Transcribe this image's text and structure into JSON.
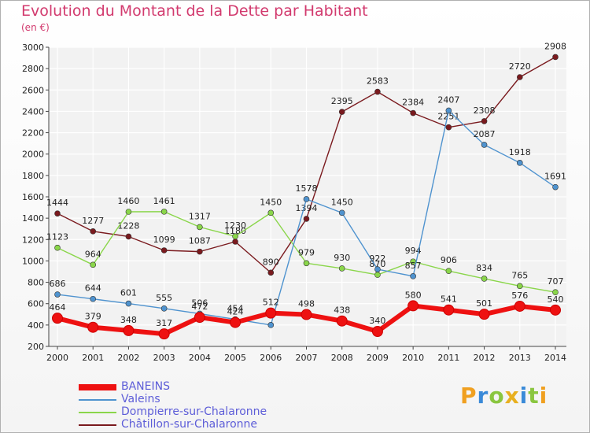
{
  "chart_data": {
    "type": "line",
    "title": "Evolution du Montant de la Dette par Habitant",
    "subtitle": "(en €)",
    "xlabel": "",
    "ylabel": "",
    "x": [
      "2000",
      "2001",
      "2002",
      "2003",
      "2004",
      "2005",
      "2006",
      "2007",
      "2008",
      "2009",
      "2010",
      "2011",
      "2012",
      "2013",
      "2014"
    ],
    "ylim": [
      200,
      3000
    ],
    "yticks": [
      200,
      400,
      600,
      800,
      1000,
      1200,
      1400,
      1600,
      1800,
      2000,
      2200,
      2400,
      2600,
      2800,
      3000
    ],
    "grid": true,
    "legend_position": "bottom-left",
    "series": [
      {
        "name": "Châtillon-sur-Chalaronne",
        "color": "#7a1a1e",
        "values": [
          1444,
          1277,
          1228,
          1099,
          1087,
          1180,
          890,
          1394,
          2395,
          2583,
          2384,
          2251,
          2308,
          2720,
          2908
        ],
        "labels": [
          "1444",
          "1277",
          "1228",
          "1099",
          "1087",
          "1180",
          "890",
          "1394",
          "2395",
          "2583",
          "2384",
          "2251",
          "2308",
          "2720",
          "2908"
        ]
      },
      {
        "name": "Dompierre-sur-Chalaronne",
        "color": "#8ad64a",
        "values": [
          1123,
          964,
          1460,
          1461,
          1317,
          1230,
          1450,
          979,
          930,
          870,
          994,
          906,
          834,
          765,
          707
        ],
        "labels": [
          "1123",
          "964",
          "1460",
          "1461",
          "1317",
          "1230",
          "1450",
          "979",
          "930",
          "870",
          "994",
          "906",
          "834",
          "765",
          "707"
        ]
      },
      {
        "name": "Valeins",
        "color": "#4f93cf",
        "values": [
          686,
          644,
          601,
          555,
          506,
          454,
          400,
          1578,
          1450,
          922,
          857,
          2407,
          2087,
          1918,
          1691
        ],
        "labels": [
          "686",
          "644",
          "601",
          "555",
          "506",
          "454",
          "",
          "1578",
          "1450",
          "922",
          "857",
          "2407",
          "2087",
          "1918",
          "1691"
        ]
      },
      {
        "name": "BANEINS",
        "color": "#ee1111",
        "values": [
          464,
          379,
          348,
          317,
          472,
          424,
          512,
          498,
          438,
          340,
          580,
          541,
          501,
          576,
          540
        ],
        "labels": [
          "464",
          "379",
          "348",
          "317",
          "472",
          "424",
          "512",
          "498",
          "438",
          "340",
          "580",
          "541",
          "501",
          "576",
          "540"
        ]
      }
    ]
  },
  "legend": [
    {
      "label": "BANEINS",
      "color": "#ee1111",
      "thick": true
    },
    {
      "label": "Valeins",
      "color": "#4f93cf",
      "thick": false
    },
    {
      "label": "Dompierre-sur-Chalaronne",
      "color": "#8ad64a",
      "thick": false
    },
    {
      "label": "Châtillon-sur-Chalaronne",
      "color": "#7a1a1e",
      "thick": false
    }
  ],
  "brand": {
    "letters": [
      "P",
      "r",
      "o",
      "x",
      "i",
      "t",
      "i"
    ],
    "colors": [
      "#f0a020",
      "#3a8ad8",
      "#8ac640",
      "#e8b020",
      "#3a8ad8",
      "#8ac640",
      "#f0a020"
    ]
  }
}
